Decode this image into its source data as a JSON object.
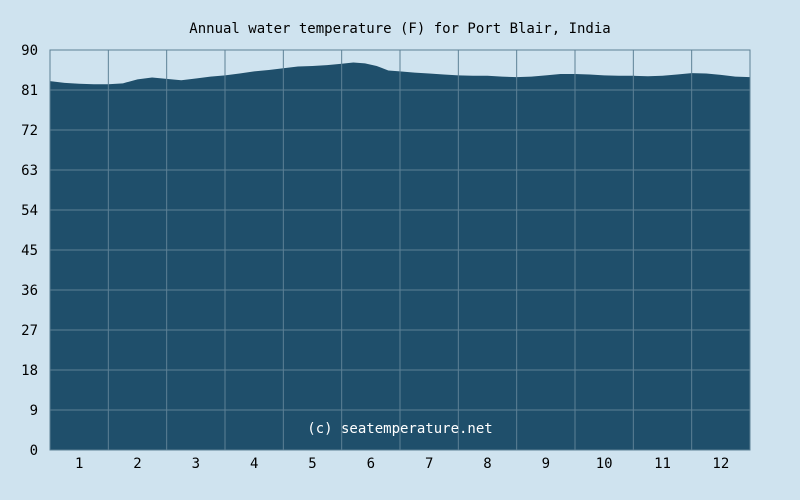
{
  "chart_data": {
    "type": "area",
    "title": "Annual water temperature (F) for Port Blair, India",
    "xlabel": "",
    "ylabel": "",
    "ylim": [
      0,
      90
    ],
    "y_ticks": [
      "0",
      "9",
      "18",
      "27",
      "36",
      "45",
      "54",
      "63",
      "72",
      "81",
      "90"
    ],
    "x_ticks": [
      "1",
      "2",
      "3",
      "4",
      "5",
      "6",
      "7",
      "8",
      "9",
      "10",
      "11",
      "12"
    ],
    "grid": true,
    "watermark": "(c) seatemperature.net",
    "series": [
      {
        "x": [
          0.0,
          0.25,
          0.5,
          0.75,
          1.0,
          1.25,
          1.5,
          1.75,
          2.0,
          2.25,
          2.5,
          2.75,
          3.0,
          3.25,
          3.5,
          3.75,
          4.0,
          4.25,
          4.5,
          4.75,
          5.0,
          5.2,
          5.4,
          5.6,
          5.8,
          6.0,
          6.25,
          6.5,
          6.75,
          7.0,
          7.25,
          7.5,
          7.75,
          8.0,
          8.25,
          8.5,
          8.75,
          9.0,
          9.25,
          9.5,
          9.75,
          10.0,
          10.25,
          10.5,
          10.75,
          11.0,
          11.25,
          11.5,
          11.75,
          12.0
        ],
        "values": [
          83.0,
          82.6,
          82.4,
          82.3,
          82.3,
          82.5,
          83.4,
          83.8,
          83.5,
          83.2,
          83.6,
          84.0,
          84.3,
          84.7,
          85.2,
          85.5,
          85.9,
          86.3,
          86.4,
          86.6,
          86.9,
          87.2,
          87.0,
          86.4,
          85.4,
          85.2,
          84.9,
          84.7,
          84.5,
          84.3,
          84.2,
          84.2,
          84.0,
          83.9,
          84.0,
          84.3,
          84.6,
          84.6,
          84.5,
          84.3,
          84.2,
          84.2,
          84.1,
          84.2,
          84.5,
          84.8,
          84.7,
          84.4,
          84.0,
          83.9
        ]
      }
    ],
    "colors": {
      "area": "#1f4f6b",
      "grid": "#5d8196",
      "background": "#cfe3ef"
    }
  }
}
